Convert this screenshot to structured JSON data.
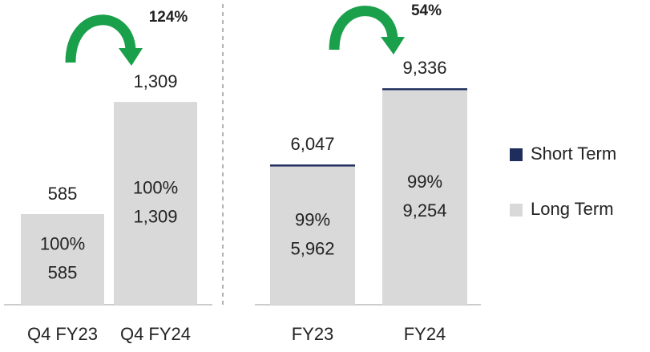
{
  "chart_data": [
    {
      "type": "bar",
      "stacked": true,
      "categories": [
        "Q4 FY23",
        "Q4 FY24"
      ],
      "series": [
        {
          "color": "#d9d9d9",
          "values": [
            585,
            1309
          ],
          "value_labels": [
            "585",
            "1,309"
          ],
          "share_labels": [
            "100%",
            "100%"
          ]
        },
        {
          "color": "#1f2d5c",
          "values": [
            0,
            0
          ]
        }
      ],
      "totals": [
        585,
        1309
      ],
      "total_labels": [
        "585",
        "1,309"
      ],
      "growth_label": "124%",
      "ylim": [
        0,
        1760
      ]
    },
    {
      "type": "bar",
      "stacked": true,
      "categories": [
        "FY23",
        "FY24"
      ],
      "series": [
        {
          "name": "Long Term",
          "color": "#d9d9d9",
          "values": [
            5962,
            9254
          ],
          "value_labels": [
            "5,962",
            "9,254"
          ],
          "share_labels": [
            "99%",
            "99%"
          ]
        },
        {
          "name": "Short Term",
          "color": "#1f2d5c",
          "values": [
            85,
            82
          ]
        }
      ],
      "totals": [
        6047,
        9336
      ],
      "total_labels": [
        "6,047",
        "9,336"
      ],
      "growth_label": "54%",
      "ylim": [
        0,
        11760
      ]
    }
  ]
}
